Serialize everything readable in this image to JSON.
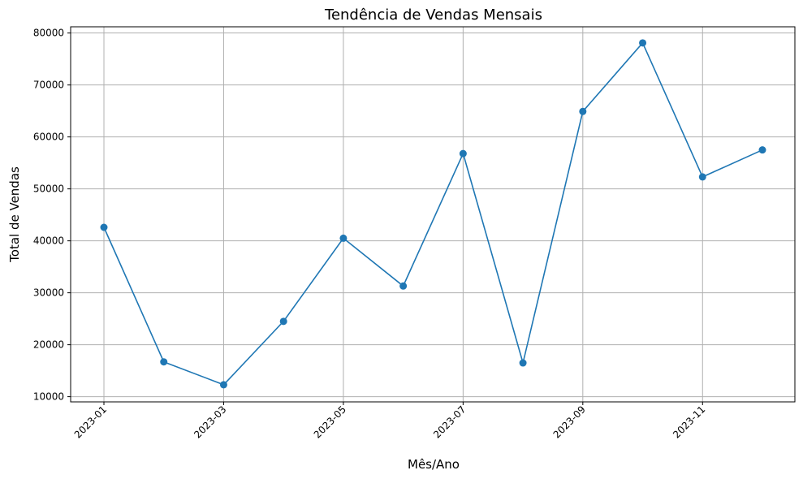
{
  "chart_data": {
    "type": "line",
    "title": "Tendência de Vendas Mensais",
    "xlabel": "Mês/Ano",
    "ylabel": "Total de Vendas",
    "x": [
      "2023-01",
      "2023-02",
      "2023-03",
      "2023-04",
      "2023-05",
      "2023-06",
      "2023-07",
      "2023-08",
      "2023-09",
      "2023-10",
      "2023-11",
      "2023-12"
    ],
    "x_tick_labels": [
      "2023-01",
      "2023-03",
      "2023-05",
      "2023-07",
      "2023-09",
      "2023-11"
    ],
    "y_ticks": [
      10000,
      20000,
      30000,
      40000,
      50000,
      60000,
      70000,
      80000
    ],
    "ylim": [
      9000,
      81200
    ],
    "grid": true,
    "marker": "circle",
    "series": [
      {
        "values": [
          42600,
          16700,
          12300,
          24500,
          40500,
          31300,
          56800,
          16500,
          64900,
          78100,
          52300,
          57500
        ],
        "color": "#1f77b4"
      }
    ]
  }
}
